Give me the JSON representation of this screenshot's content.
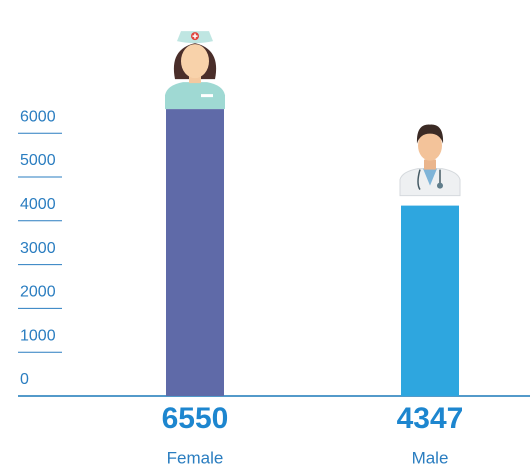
{
  "chart_data": {
    "type": "bar",
    "categories": [
      "Female",
      "Male"
    ],
    "values": [
      6550,
      4347
    ],
    "colors": [
      "#5f6aa8",
      "#2ea6df"
    ],
    "ylim": [
      0,
      7000
    ],
    "yticks": [
      0,
      1000,
      2000,
      3000,
      4000,
      5000,
      6000
    ]
  }
}
